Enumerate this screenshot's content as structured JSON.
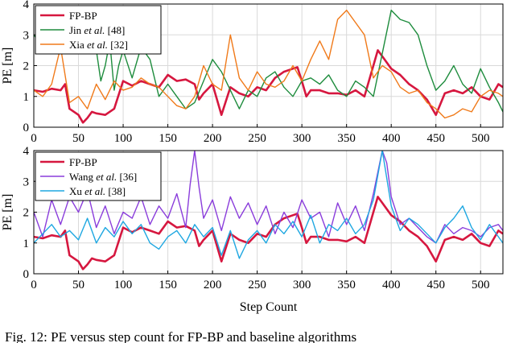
{
  "caption": "Fig. 12: PE versus step count for FP-BP and baseline algorithms",
  "chart_data": [
    {
      "type": "line",
      "ylabel": "PE [m]",
      "xlabel": "",
      "xlim": [
        0,
        525
      ],
      "ylim": [
        0,
        4
      ],
      "xticks": [
        "0",
        "50",
        "100",
        "150",
        "200",
        "250",
        "300",
        "350",
        "400",
        "450",
        "500"
      ],
      "yticks": [
        "0",
        "1",
        "2",
        "3",
        "4"
      ],
      "grid": true,
      "legend_position": "top-left",
      "series": [
        {
          "name": "FP-BP",
          "legend_parts": [
            "FP-BP"
          ],
          "color": "#d6173f",
          "width": 2.6,
          "x": [
            0,
            10,
            20,
            30,
            35,
            40,
            50,
            55,
            60,
            65,
            70,
            80,
            90,
            100,
            110,
            120,
            130,
            140,
            150,
            160,
            170,
            180,
            185,
            190,
            200,
            210,
            220,
            230,
            240,
            250,
            260,
            270,
            280,
            290,
            295,
            300,
            305,
            310,
            320,
            330,
            340,
            350,
            360,
            370,
            380,
            385,
            390,
            400,
            410,
            420,
            430,
            440,
            450,
            460,
            470,
            480,
            490,
            500,
            510,
            520,
            525
          ],
          "y": [
            1.2,
            1.15,
            1.25,
            1.2,
            1.4,
            0.6,
            0.4,
            0.15,
            0.3,
            0.5,
            0.45,
            0.4,
            0.6,
            1.5,
            1.35,
            1.5,
            1.4,
            1.3,
            1.7,
            1.5,
            1.55,
            1.4,
            0.9,
            1.1,
            1.4,
            0.4,
            1.3,
            1.1,
            1.0,
            1.3,
            1.2,
            1.6,
            1.8,
            1.9,
            1.95,
            1.5,
            1.0,
            1.2,
            1.2,
            1.1,
            1.1,
            1.05,
            1.2,
            1.0,
            2.0,
            2.5,
            2.3,
            1.9,
            1.7,
            1.4,
            1.2,
            0.9,
            0.4,
            1.1,
            1.2,
            1.1,
            1.3,
            1.0,
            0.9,
            1.4,
            1.3
          ]
        },
        {
          "name": "Jin et al. [48]",
          "legend_parts": [
            "Jin ",
            "et al.",
            " [48]"
          ],
          "color": "#1e8c3d",
          "width": 1.4,
          "x": [
            0,
            5,
            10,
            15,
            20,
            25,
            30,
            35,
            40,
            45,
            50,
            55,
            60,
            65,
            70,
            75,
            80,
            85,
            90,
            95,
            100,
            110,
            120,
            130,
            140,
            150,
            160,
            170,
            180,
            190,
            200,
            210,
            220,
            230,
            240,
            250,
            260,
            270,
            280,
            290,
            300,
            310,
            320,
            330,
            340,
            350,
            360,
            370,
            380,
            390,
            400,
            410,
            420,
            430,
            440,
            450,
            460,
            470,
            480,
            490,
            500,
            510,
            520,
            525
          ],
          "y": [
            3.0,
            2.8,
            2.6,
            2.7,
            2.5,
            2.8,
            3.1,
            2.9,
            3.0,
            2.6,
            2.8,
            2.5,
            2.7,
            3.0,
            2.5,
            1.5,
            2.0,
            2.8,
            1.2,
            2.0,
            2.5,
            1.6,
            2.6,
            2.2,
            1.0,
            1.4,
            1.0,
            0.6,
            0.8,
            1.5,
            2.2,
            1.8,
            1.2,
            0.6,
            1.2,
            1.0,
            1.6,
            1.8,
            1.3,
            1.0,
            1.5,
            1.6,
            1.4,
            1.7,
            1.2,
            1.0,
            1.5,
            1.3,
            1.0,
            2.4,
            3.8,
            3.5,
            3.4,
            3.0,
            2.0,
            1.2,
            1.5,
            2.0,
            1.4,
            1.1,
            1.9,
            1.3,
            0.8,
            0.5
          ]
        },
        {
          "name": "Xia et al. [32]",
          "legend_parts": [
            "Xia ",
            "et al.",
            " [32]"
          ],
          "color": "#f07a1a",
          "width": 1.4,
          "x": [
            0,
            10,
            20,
            30,
            40,
            50,
            60,
            70,
            80,
            90,
            100,
            110,
            120,
            130,
            140,
            150,
            160,
            170,
            180,
            190,
            200,
            210,
            220,
            230,
            240,
            250,
            260,
            270,
            280,
            290,
            300,
            310,
            320,
            330,
            340,
            350,
            360,
            370,
            380,
            390,
            400,
            410,
            420,
            430,
            440,
            450,
            460,
            470,
            480,
            490,
            500,
            510,
            520,
            525
          ],
          "y": [
            1.2,
            1.0,
            1.4,
            2.6,
            0.8,
            1.0,
            0.6,
            1.4,
            0.9,
            1.5,
            1.2,
            1.3,
            1.6,
            1.4,
            1.3,
            1.0,
            0.7,
            0.6,
            1.0,
            2.0,
            1.4,
            1.2,
            3.0,
            1.6,
            1.2,
            1.8,
            1.4,
            1.3,
            1.5,
            2.0,
            1.5,
            2.2,
            2.8,
            2.2,
            3.5,
            3.8,
            3.4,
            3.0,
            1.6,
            2.0,
            1.8,
            1.3,
            1.1,
            1.2,
            0.8,
            0.6,
            0.3,
            0.4,
            0.6,
            0.5,
            1.0,
            1.2,
            1.1,
            1.0
          ]
        }
      ]
    },
    {
      "type": "line",
      "ylabel": "PE [m]",
      "xlabel": "Step Count",
      "xlim": [
        0,
        525
      ],
      "ylim": [
        0,
        4
      ],
      "xticks": [
        "0",
        "50",
        "100",
        "150",
        "200",
        "250",
        "300",
        "350",
        "400",
        "450",
        "500"
      ],
      "yticks": [
        "0",
        "1",
        "2",
        "3",
        "4"
      ],
      "grid": true,
      "legend_position": "top-left",
      "series": [
        {
          "name": "FP-BP",
          "legend_parts": [
            "FP-BP"
          ],
          "color": "#d6173f",
          "width": 2.6,
          "x": [
            0,
            10,
            20,
            30,
            35,
            40,
            50,
            55,
            60,
            65,
            70,
            80,
            90,
            100,
            110,
            120,
            130,
            140,
            150,
            160,
            170,
            180,
            185,
            190,
            200,
            210,
            220,
            230,
            240,
            250,
            260,
            270,
            280,
            290,
            295,
            300,
            305,
            310,
            320,
            330,
            340,
            350,
            360,
            370,
            380,
            385,
            390,
            400,
            410,
            420,
            430,
            440,
            450,
            460,
            470,
            480,
            490,
            500,
            510,
            520,
            525
          ],
          "y": [
            1.2,
            1.15,
            1.25,
            1.2,
            1.4,
            0.6,
            0.4,
            0.15,
            0.3,
            0.5,
            0.45,
            0.4,
            0.6,
            1.5,
            1.35,
            1.5,
            1.4,
            1.3,
            1.7,
            1.5,
            1.55,
            1.4,
            0.9,
            1.1,
            1.4,
            0.4,
            1.3,
            1.1,
            1.0,
            1.3,
            1.2,
            1.6,
            1.8,
            1.9,
            1.95,
            1.5,
            1.0,
            1.2,
            1.2,
            1.1,
            1.1,
            1.05,
            1.2,
            1.0,
            2.0,
            2.5,
            2.3,
            1.9,
            1.7,
            1.4,
            1.2,
            0.9,
            0.4,
            1.1,
            1.2,
            1.1,
            1.3,
            1.0,
            0.9,
            1.4,
            1.3
          ]
        },
        {
          "name": "Wang et al. [36]",
          "legend_parts": [
            "Wang ",
            "et al.",
            " [36]"
          ],
          "color": "#8a3ddb",
          "width": 1.4,
          "x": [
            0,
            10,
            20,
            30,
            40,
            50,
            60,
            70,
            80,
            90,
            100,
            110,
            120,
            130,
            140,
            150,
            160,
            170,
            175,
            180,
            185,
            190,
            200,
            210,
            220,
            230,
            240,
            250,
            260,
            270,
            280,
            290,
            300,
            310,
            320,
            330,
            340,
            350,
            360,
            370,
            380,
            390,
            395,
            400,
            410,
            420,
            430,
            440,
            450,
            460,
            470,
            480,
            490,
            500,
            510,
            520,
            525
          ],
          "y": [
            2.0,
            1.2,
            2.4,
            1.6,
            2.5,
            2.0,
            2.7,
            1.5,
            2.2,
            1.3,
            2.0,
            1.8,
            2.5,
            1.6,
            2.2,
            1.8,
            2.6,
            1.5,
            2.9,
            4.0,
            2.8,
            1.8,
            2.4,
            1.4,
            2.5,
            1.8,
            2.3,
            1.6,
            2.2,
            1.3,
            2.0,
            1.5,
            2.4,
            1.8,
            2.0,
            1.2,
            2.3,
            1.6,
            2.2,
            1.4,
            2.6,
            4.0,
            3.6,
            2.5,
            1.6,
            1.8,
            1.5,
            1.2,
            1.0,
            1.6,
            1.3,
            1.5,
            1.4,
            1.2,
            1.5,
            1.6,
            1.4
          ]
        },
        {
          "name": "Xu et al. [38]",
          "legend_parts": [
            "Xu ",
            "et al.",
            " [38]"
          ],
          "color": "#1ea7e1",
          "width": 1.4,
          "x": [
            0,
            10,
            20,
            30,
            40,
            50,
            60,
            70,
            80,
            90,
            100,
            110,
            120,
            130,
            140,
            150,
            160,
            170,
            180,
            190,
            200,
            210,
            220,
            230,
            240,
            250,
            260,
            270,
            280,
            290,
            300,
            310,
            320,
            330,
            340,
            350,
            360,
            370,
            380,
            390,
            400,
            410,
            420,
            430,
            440,
            450,
            460,
            470,
            480,
            490,
            500,
            510,
            520,
            525
          ],
          "y": [
            1.0,
            1.3,
            1.6,
            1.2,
            1.4,
            1.1,
            1.8,
            1.0,
            1.5,
            1.2,
            1.7,
            1.3,
            1.6,
            1.0,
            0.8,
            1.2,
            1.4,
            1.0,
            1.6,
            1.2,
            1.5,
            0.6,
            1.4,
            0.5,
            1.1,
            1.4,
            1.0,
            1.6,
            1.3,
            1.7,
            1.2,
            1.9,
            1.0,
            1.6,
            1.4,
            1.8,
            1.3,
            1.6,
            2.4,
            4.0,
            2.2,
            1.4,
            1.8,
            1.6,
            1.3,
            1.0,
            1.5,
            1.8,
            2.2,
            1.5,
            1.1,
            1.6,
            1.2,
            1.0
          ]
        }
      ]
    }
  ]
}
